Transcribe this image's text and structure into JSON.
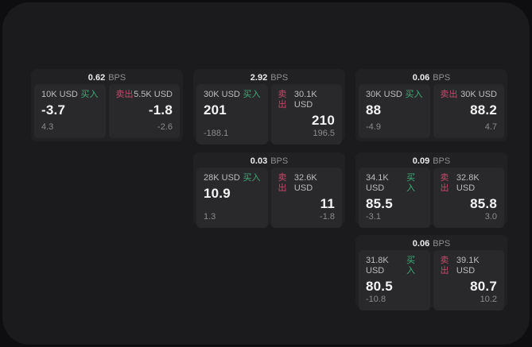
{
  "labels": {
    "bps": "BPS",
    "buy": "买入",
    "sell": "卖出"
  },
  "colors": {
    "background": "#0e0e10",
    "panel": "#1b1b1d",
    "card": "#212124",
    "tile": "#29292c",
    "buy_accent": "#3faa76",
    "sell_accent": "#c34a68"
  },
  "cards": [
    {
      "bps": "0.62",
      "buy": {
        "size": "10K USD",
        "price": "-3.7",
        "change": "4.3"
      },
      "sell": {
        "size": "5.5K USD",
        "price": "-1.8",
        "change": "-2.6"
      }
    },
    {
      "bps": "2.92",
      "buy": {
        "size": "30K USD",
        "price": "201",
        "change": "-188.1"
      },
      "sell": {
        "size": "30.1K USD",
        "price": "210",
        "change": "196.5"
      }
    },
    {
      "bps": "0.06",
      "buy": {
        "size": "30K USD",
        "price": "88",
        "change": "-4.9"
      },
      "sell": {
        "size": "30K USD",
        "price": "88.2",
        "change": "4.7"
      }
    },
    {
      "bps": "0.03",
      "buy": {
        "size": "28K USD",
        "price": "10.9",
        "change": "1.3"
      },
      "sell": {
        "size": "32.6K USD",
        "price": "11",
        "change": "-1.8"
      }
    },
    {
      "bps": "0.09",
      "buy": {
        "size": "34.1K USD",
        "price": "85.5",
        "change": "-3.1"
      },
      "sell": {
        "size": "32.8K USD",
        "price": "85.8",
        "change": "3.0"
      }
    },
    {
      "bps": "0.06",
      "buy": {
        "size": "31.8K USD",
        "price": "80.5",
        "change": "-10.8"
      },
      "sell": {
        "size": "39.1K USD",
        "price": "80.7",
        "change": "10.2"
      }
    }
  ]
}
